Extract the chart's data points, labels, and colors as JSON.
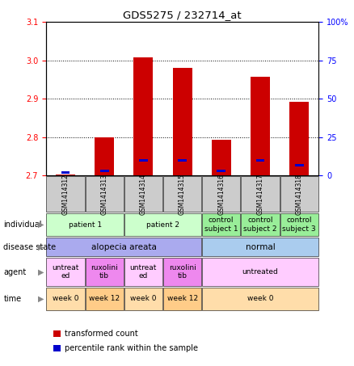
{
  "title": "GDS5275 / 232714_at",
  "samples": [
    "GSM1414312",
    "GSM1414313",
    "GSM1414314",
    "GSM1414315",
    "GSM1414316",
    "GSM1414317",
    "GSM1414318"
  ],
  "transformed_count": [
    2.703,
    2.8,
    3.008,
    2.98,
    2.793,
    2.958,
    2.892
  ],
  "percentile_rank": [
    2.0,
    3.0,
    10.0,
    10.0,
    3.0,
    10.0,
    7.0
  ],
  "ylim_left": [
    2.7,
    3.1
  ],
  "ylim_right": [
    0,
    100
  ],
  "yticks_left": [
    2.7,
    2.8,
    2.9,
    3.0,
    3.1
  ],
  "yticks_right": [
    0,
    25,
    50,
    75,
    100
  ],
  "bar_color_red": "#cc0000",
  "bar_color_blue": "#0000cc",
  "base_value": 2.7,
  "ind_configs": [
    [
      0,
      2,
      "#ccffcc",
      "patient 1"
    ],
    [
      2,
      4,
      "#ccffcc",
      "patient 2"
    ],
    [
      4,
      5,
      "#99ee99",
      "control\nsubject 1"
    ],
    [
      5,
      6,
      "#99ee99",
      "control\nsubject 2"
    ],
    [
      6,
      7,
      "#99ee99",
      "control\nsubject 3"
    ]
  ],
  "dis_configs": [
    [
      0,
      4,
      "#aaaaee",
      "alopecia areata"
    ],
    [
      4,
      7,
      "#aaccee",
      "normal"
    ]
  ],
  "ag_configs": [
    [
      0,
      1,
      "#ffccff",
      "untreat\ned"
    ],
    [
      1,
      2,
      "#ee88ee",
      "ruxolini\ntib"
    ],
    [
      2,
      3,
      "#ffccff",
      "untreat\ned"
    ],
    [
      3,
      4,
      "#ee88ee",
      "ruxolini\ntib"
    ],
    [
      4,
      7,
      "#ffccff",
      "untreated"
    ]
  ],
  "ti_configs": [
    [
      0,
      1,
      "#ffddaa",
      "week 0"
    ],
    [
      1,
      2,
      "#ffcc88",
      "week 12"
    ],
    [
      2,
      3,
      "#ffddaa",
      "week 0"
    ],
    [
      3,
      4,
      "#ffcc88",
      "week 12"
    ],
    [
      4,
      7,
      "#ffddaa",
      "week 0"
    ]
  ],
  "row_label_names": [
    "individual",
    "disease state",
    "agent",
    "time"
  ],
  "xticklabel_bg": "#cccccc"
}
